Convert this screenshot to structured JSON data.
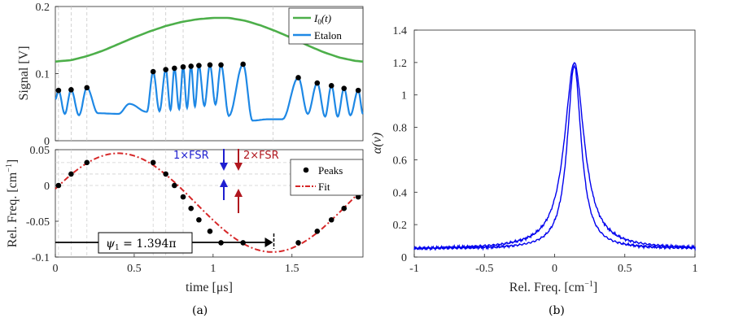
{
  "chart_data": [
    {
      "id": "signal",
      "type": "line",
      "panel": "(a) top",
      "ylabel": "Signal [V]",
      "xlim": [
        0,
        1.95
      ],
      "ylim": [
        0,
        0.2
      ],
      "yticks": [
        0,
        0.1,
        0.2
      ],
      "ytick_labels": [
        "0",
        "0.1",
        "0.2"
      ],
      "legend_position": "top-right",
      "series": [
        {
          "name": "I0(t)",
          "label_base": "I",
          "label_sub": "0",
          "label_tail": "(t)",
          "color": "#4daf4a",
          "x": [
            0,
            0.1,
            0.2,
            0.3,
            0.4,
            0.5,
            0.6,
            0.7,
            0.8,
            0.9,
            1.0,
            1.1,
            1.2,
            1.3,
            1.4,
            1.5,
            1.6,
            1.7,
            1.8,
            1.9,
            1.95
          ],
          "y": [
            0.118,
            0.12,
            0.126,
            0.134,
            0.144,
            0.154,
            0.163,
            0.171,
            0.177,
            0.181,
            0.183,
            0.183,
            0.179,
            0.172,
            0.163,
            0.153,
            0.142,
            0.132,
            0.124,
            0.119,
            0.118
          ]
        },
        {
          "name": "Etalon",
          "color": "#1e88e5"
        }
      ],
      "peaks": {
        "x": [
          0.02,
          0.1,
          0.2,
          0.62,
          0.7,
          0.755,
          0.81,
          0.86,
          0.91,
          0.98,
          1.05,
          1.19,
          1.54,
          1.66,
          1.75,
          1.83,
          1.92
        ],
        "y": [
          0.075,
          0.076,
          0.079,
          0.103,
          0.106,
          0.108,
          0.11,
          0.111,
          0.112,
          0.113,
          0.113,
          0.114,
          0.094,
          0.086,
          0.082,
          0.078,
          0.075
        ]
      },
      "minima": {
        "x": [
          0.06,
          0.15,
          0.27,
          0.4,
          0.47,
          0.58,
          0.66,
          0.73,
          0.785,
          0.835,
          0.885,
          0.945,
          1.015,
          1.1,
          1.25,
          1.35,
          1.44,
          1.6,
          1.71,
          1.79,
          1.87,
          1.95
        ],
        "y": [
          0.04,
          0.038,
          0.041,
          0.04,
          0.055,
          0.043,
          0.044,
          0.046,
          0.047,
          0.049,
          0.051,
          0.052,
          0.054,
          0.037,
          0.03,
          0.032,
          0.032,
          0.04,
          0.036,
          0.036,
          0.038,
          0.04
        ]
      },
      "dashed_vlines": [
        0.02,
        0.1,
        0.2,
        0.62,
        0.7,
        0.81,
        1.38
      ]
    },
    {
      "id": "relfreq",
      "type": "scatter",
      "panel": "(a) bottom",
      "xlabel": "time [μs]",
      "ylabel": "Rel. Freq. [cm",
      "ylabel_sup": "−1",
      "ylabel_close": "]",
      "xlim": [
        0,
        1.95
      ],
      "ylim": [
        -0.1,
        0.05
      ],
      "xticks": [
        0,
        0.5,
        1,
        1.5
      ],
      "xtick_labels": [
        "0",
        "0.5",
        "1",
        "1.5"
      ],
      "yticks": [
        -0.1,
        -0.05,
        0,
        0.05
      ],
      "ytick_labels": [
        "-0.1",
        "-0.05",
        "0",
        "0.05"
      ],
      "legend_position": "top-right",
      "series": [
        {
          "name": "Peaks",
          "color": "#000000",
          "x": [
            0.02,
            0.1,
            0.2,
            0.62,
            0.7,
            0.755,
            0.81,
            0.86,
            0.91,
            0.98,
            1.05,
            1.19,
            1.54,
            1.66,
            1.75,
            1.83,
            1.92
          ],
          "y": [
            0.0,
            0.016,
            0.032,
            0.032,
            0.016,
            0.0,
            -0.016,
            -0.032,
            -0.048,
            -0.064,
            -0.08,
            -0.08,
            -0.08,
            -0.064,
            -0.048,
            -0.032,
            -0.016
          ]
        },
        {
          "name": "Fit",
          "color": "#d62728",
          "amplitude": 0.069,
          "offset": -0.024,
          "period": 1.95,
          "phase_x": 0.4
        }
      ],
      "annotations": {
        "fsr1": "1×FSR",
        "fsr2": "2×FSR",
        "psi_symbol": "ψ",
        "psi_sub": "1",
        "psi_value": " = 1.394π",
        "psi_end_x": 1.38
      },
      "dashed_hlines": [
        0.032,
        0.016,
        0.0
      ]
    },
    {
      "id": "absorbance",
      "type": "line",
      "panel": "(b)",
      "xlabel": "Rel. Freq. [cm",
      "xlabel_sup": "−1",
      "xlabel_close": "]",
      "ylabel": "α(ν)",
      "xlim": [
        -1,
        1
      ],
      "ylim": [
        0,
        1.4
      ],
      "xticks": [
        -1,
        -0.5,
        0,
        0.5,
        1
      ],
      "xtick_labels": [
        "-1",
        "-0.5",
        "0",
        "0.5",
        "1"
      ],
      "yticks": [
        0,
        0.2,
        0.4,
        0.6,
        0.8,
        1,
        1.2,
        1.4
      ],
      "ytick_labels": [
        "0",
        "0.2",
        "0.4",
        "0.6",
        "0.8",
        "1",
        "1.2",
        "1.4"
      ],
      "series": [
        {
          "name": "absorbance",
          "color": "#0000ee",
          "center": 0.14,
          "peak": 1.2,
          "baseline": 0.05,
          "hwhm_upper": 0.085,
          "hwhm_lower": 0.06
        }
      ]
    }
  ],
  "captions": {
    "a": "(a)",
    "b": "(b)"
  }
}
